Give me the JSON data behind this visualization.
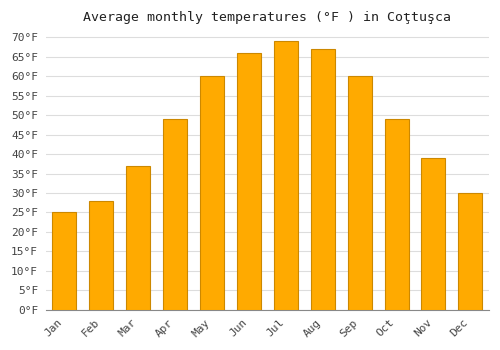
{
  "title": "Average monthly temperatures (°F ) in Coţtuşca",
  "months": [
    "Jan",
    "Feb",
    "Mar",
    "Apr",
    "May",
    "Jun",
    "Jul",
    "Aug",
    "Sep",
    "Oct",
    "Nov",
    "Dec"
  ],
  "values": [
    25,
    28,
    37,
    49,
    60,
    66,
    69,
    67,
    60,
    49,
    39,
    30
  ],
  "bar_color": "#FFAA00",
  "bar_edge_color": "#CC8800",
  "background_color": "#FFFFFF",
  "grid_color": "#DDDDDD",
  "ylim": [
    0,
    72
  ],
  "yticks": [
    0,
    5,
    10,
    15,
    20,
    25,
    30,
    35,
    40,
    45,
    50,
    55,
    60,
    65,
    70
  ],
  "title_fontsize": 9.5,
  "tick_fontsize": 8,
  "bar_width": 0.65
}
